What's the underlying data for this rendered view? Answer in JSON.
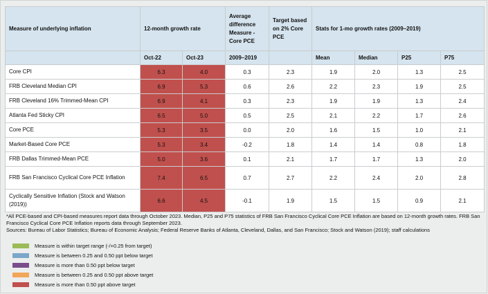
{
  "headers": {
    "measure": "Measure of underlying inflation",
    "growth": "12-month growth rate",
    "oct22": "Oct-22",
    "oct23": "Oct-23",
    "avgdiff": "Average difference Measure - Core PCE",
    "avgdiff_years": "2009–2019",
    "target": "Target based on 2% Core PCE",
    "stats": "Stats for 1-mo growth rates (2009–2019)",
    "mean": "Mean",
    "median": "Median",
    "p25": "P25",
    "p75": "P75"
  },
  "rows": [
    {
      "measure": "Core CPI",
      "oct22": "6.3",
      "oct23": "4.0",
      "avgdiff": "0.3",
      "target": "2.3",
      "mean": "1.9",
      "median": "2.0",
      "p25": "1.3",
      "p75": "2.5"
    },
    {
      "measure": "FRB Cleveland Median CPI",
      "oct22": "6.9",
      "oct23": "5.3",
      "avgdiff": "0.6",
      "target": "2.6",
      "mean": "2.2",
      "median": "2.3",
      "p25": "1.9",
      "p75": "2.5"
    },
    {
      "measure": "FRB Cleveland 16% Trimmed-Mean CPI",
      "oct22": "6.9",
      "oct23": "4.1",
      "avgdiff": "0.3",
      "target": "2.3",
      "mean": "1.9",
      "median": "1.9",
      "p25": "1.3",
      "p75": "2.4"
    },
    {
      "measure": "Atlanta Fed Sticky CPI",
      "oct22": "6.5",
      "oct23": "5.0",
      "avgdiff": "0.5",
      "target": "2.5",
      "mean": "2.1",
      "median": "2.2",
      "p25": "1.7",
      "p75": "2.6"
    },
    {
      "measure": "Core PCE",
      "oct22": "5.3",
      "oct23": "3.5",
      "avgdiff": "0.0",
      "target": "2.0",
      "mean": "1.6",
      "median": "1.5",
      "p25": "1.0",
      "p75": "2.1"
    },
    {
      "measure": "Market-Based Core PCE",
      "oct22": "5.3",
      "oct23": "3.4",
      "avgdiff": "-0.2",
      "target": "1.8",
      "mean": "1.4",
      "median": "1.4",
      "p25": "0.8",
      "p75": "1.8"
    },
    {
      "measure": "FRB Dallas Trimmed-Mean PCE",
      "oct22": "5.0",
      "oct23": "3.6",
      "avgdiff": "0.1",
      "target": "2.1",
      "mean": "1.7",
      "median": "1.7",
      "p25": "1.3",
      "p75": "2.0"
    },
    {
      "measure": "FRB San Francisco Cyclical Core PCE Inflation",
      "oct22": "7.4",
      "oct23": "6.5",
      "avgdiff": "0.7",
      "target": "2.7",
      "mean": "2.2",
      "median": "2.4",
      "p25": "2.0",
      "p75": "2.8"
    },
    {
      "measure": "Cyclically Sensitive Inflation (Stock and Watson (2019))",
      "oct22": "6.6",
      "oct23": "4.5",
      "avgdiff": "-0.1",
      "target": "1.9",
      "mean": "1.5",
      "median": "1.5",
      "p25": "0.9",
      "p75": "2.1"
    }
  ],
  "flag_color": "#c0504d",
  "notes": [
    "*All PCE-based and CPI-based measures report data through October 2023. Median, P25 and P75 statistics of FRB San Francisco Cyclical Core PCE Inflation are based on 12-month growth rates. FRB San Francisco Cyclical Core PCE Inflation reports data through September 2023.",
    "Sources: Bureau of Labor Statistics; Bureau of Economic Analysis; Federal Reserve Banks of Atlanta, Cleveland, Dallas, and San Francisco; Stock and Watson (2019); staff calculations"
  ],
  "legend": [
    {
      "label": "Measure is within target range (-/+0.25 from target)",
      "color": "#9bbb59"
    },
    {
      "label": "Measure is between 0.25 and 0.50 ppt below target",
      "color": "#7ba7c9"
    },
    {
      "label": "Measure is more than 0.50 ppt below target",
      "color": "#7a4e8c"
    },
    {
      "label": "Measure is between 0.25 and 0.50 ppt above target",
      "color": "#f2a65a"
    },
    {
      "label": "Measure is more than 0.50 ppt above target",
      "color": "#c0504d"
    }
  ]
}
